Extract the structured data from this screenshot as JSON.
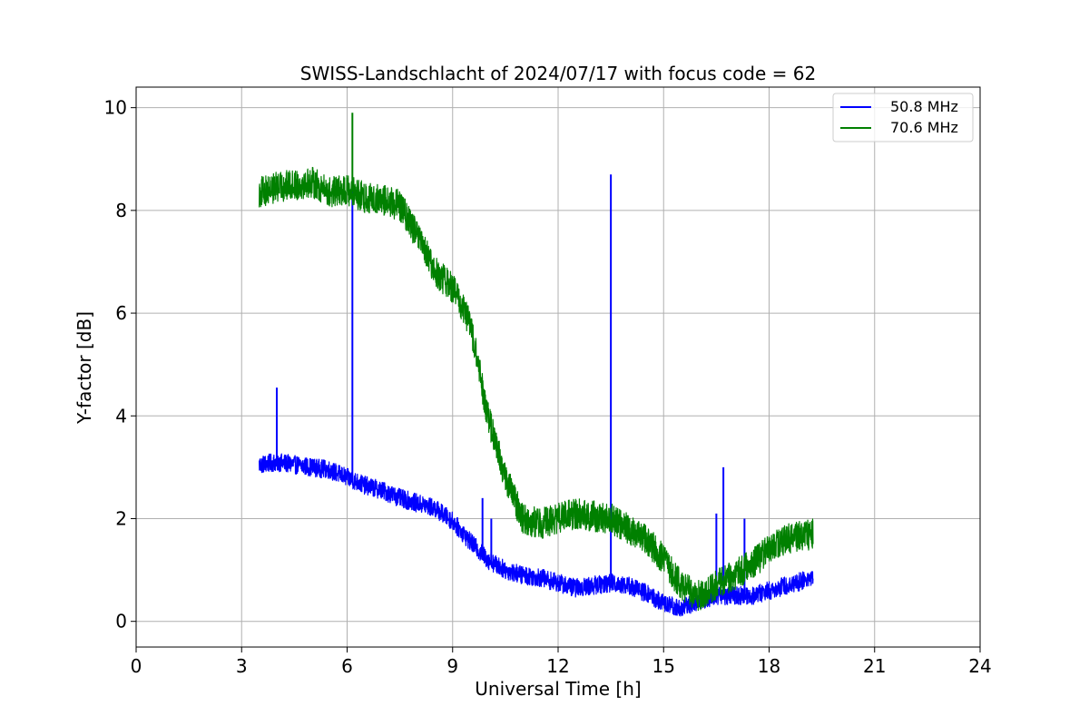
{
  "chart_data": {
    "type": "line",
    "title": "SWISS-Landschlacht of 2024/07/17 with focus code = 62",
    "xlabel": "Universal Time [h]",
    "ylabel": "Y-factor [dB]",
    "xlim": [
      0,
      24
    ],
    "ylim": [
      -0.5,
      10.4
    ],
    "xticks": [
      0,
      3,
      6,
      9,
      12,
      15,
      18,
      21,
      24
    ],
    "yticks": [
      0,
      2,
      4,
      6,
      8,
      10
    ],
    "grid": true,
    "legend_position": "top-right",
    "series": [
      {
        "name": "50.8 MHz",
        "color": "#0000ff",
        "noise_amplitude": 0.18,
        "x": [
          3.5,
          4.0,
          4.5,
          5.0,
          5.5,
          6.0,
          6.5,
          7.0,
          7.5,
          8.0,
          8.5,
          9.0,
          9.5,
          10.0,
          10.5,
          11.0,
          11.5,
          12.0,
          12.5,
          13.0,
          13.5,
          14.0,
          14.5,
          15.0,
          15.5,
          16.0,
          16.5,
          17.0,
          17.5,
          18.0,
          18.5,
          19.25
        ],
        "y": [
          3.05,
          3.1,
          3.05,
          3.0,
          2.95,
          2.8,
          2.65,
          2.55,
          2.4,
          2.3,
          2.2,
          1.95,
          1.55,
          1.2,
          1.0,
          0.9,
          0.85,
          0.75,
          0.65,
          0.7,
          0.75,
          0.7,
          0.55,
          0.35,
          0.25,
          0.4,
          0.5,
          0.5,
          0.5,
          0.6,
          0.7,
          0.85
        ],
        "spikes": [
          {
            "x": 4.0,
            "y": 4.55
          },
          {
            "x": 6.15,
            "y": 8.5
          },
          {
            "x": 9.85,
            "y": 2.4
          },
          {
            "x": 10.1,
            "y": 2.0
          },
          {
            "x": 13.5,
            "y": 8.7
          },
          {
            "x": 16.5,
            "y": 2.1
          },
          {
            "x": 16.7,
            "y": 3.0
          },
          {
            "x": 17.3,
            "y": 2.0
          }
        ]
      },
      {
        "name": "70.6 MHz",
        "color": "#008000",
        "noise_amplitude": 0.3,
        "x": [
          3.5,
          4.0,
          4.5,
          5.0,
          5.5,
          6.0,
          6.5,
          7.0,
          7.5,
          8.0,
          8.5,
          9.0,
          9.5,
          10.0,
          10.5,
          11.0,
          11.5,
          12.0,
          12.5,
          13.0,
          13.5,
          14.0,
          14.5,
          15.0,
          15.5,
          16.0,
          16.5,
          17.0,
          17.5,
          18.0,
          18.5,
          19.25
        ],
        "y": [
          8.35,
          8.45,
          8.5,
          8.55,
          8.35,
          8.4,
          8.25,
          8.2,
          8.1,
          7.5,
          6.8,
          6.5,
          5.8,
          4.0,
          2.8,
          2.0,
          1.9,
          2.0,
          2.1,
          2.05,
          2.0,
          1.8,
          1.6,
          1.2,
          0.7,
          0.5,
          0.7,
          0.9,
          1.1,
          1.4,
          1.6,
          1.7
        ],
        "spikes": [
          {
            "x": 6.15,
            "y": 9.9
          }
        ]
      }
    ]
  }
}
